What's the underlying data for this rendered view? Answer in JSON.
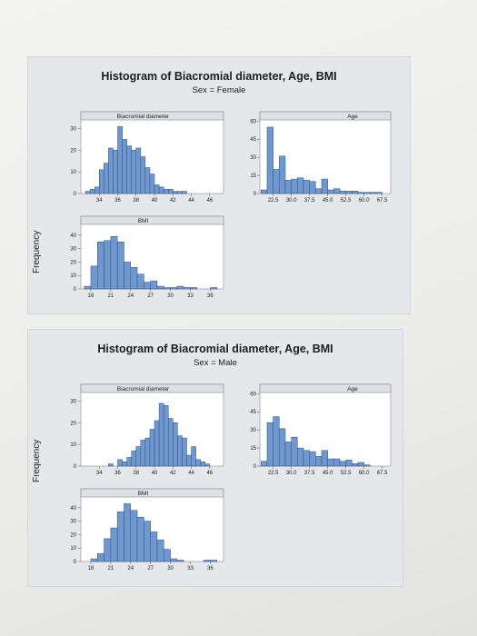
{
  "ylabel": "Frequency",
  "figures": [
    {
      "title": "Histogram of Biacromial diameter, Age, BMI",
      "subtitle": "Sex = Female",
      "ylabel": "Frequency"
    },
    {
      "title": "Histogram of Biacromial diameter, Age, BMI",
      "subtitle": "Sex = Male",
      "ylabel": "Frequency"
    }
  ],
  "colors": {
    "bar": "#6f98cf",
    "bar_edge": "#2f4f86",
    "panel_bg": "#ffffff",
    "figure_bg": "#e6e7ea",
    "strip_bg": "#dde1e6"
  },
  "chart_data": [
    {
      "type": "bar",
      "title": "Histogram of Biacromial diameter, Age, BMI",
      "subtitle": "Sex = Female",
      "ylabel": "Frequency",
      "panels": [
        {
          "name": "Biacromial diameter",
          "xticks": [
            34,
            36,
            38,
            40,
            42,
            44,
            46
          ],
          "yticks": [
            0,
            10,
            20,
            30
          ],
          "ylim": [
            0,
            34
          ],
          "xlim": [
            32,
            47.5
          ],
          "bin_width": 0.5,
          "x": [
            32.75,
            33.25,
            33.75,
            34.25,
            34.75,
            35.25,
            35.75,
            36.25,
            36.75,
            37.25,
            37.75,
            38.25,
            38.75,
            39.25,
            39.75,
            40.25,
            40.75,
            41.25,
            41.75,
            42.25,
            42.75,
            43.25,
            43.75,
            44.25,
            44.75,
            45.25,
            45.75,
            46.25,
            46.75
          ],
          "values": [
            1,
            2,
            3,
            11,
            14,
            21,
            20,
            31,
            25,
            22,
            20,
            21,
            17,
            12,
            9,
            4,
            3,
            2,
            2,
            1,
            1,
            1,
            0,
            0,
            0,
            0,
            0,
            0,
            0
          ]
        },
        {
          "name": "Age",
          "xticks": [
            "22.5",
            "30.0",
            "37.5",
            "45.0",
            "52.5",
            "60.0",
            "67.5"
          ],
          "xtick_values": [
            22.5,
            30.0,
            37.5,
            45.0,
            52.5,
            60.0,
            67.5
          ],
          "yticks": [
            0,
            15,
            30,
            45,
            60
          ],
          "ylim": [
            0,
            61
          ],
          "xlim": [
            17,
            71
          ],
          "bin_width": 2.5,
          "x": [
            18.75,
            21.25,
            23.75,
            26.25,
            28.75,
            31.25,
            33.75,
            36.25,
            38.75,
            41.25,
            43.75,
            46.25,
            48.75,
            51.25,
            53.75,
            56.25,
            58.75,
            61.25,
            63.75,
            66.25
          ],
          "values": [
            3,
            55,
            20,
            31,
            11,
            12,
            13,
            11,
            10,
            4,
            12,
            3,
            4,
            2,
            2,
            2,
            1,
            1,
            1,
            1
          ]
        },
        {
          "name": "BMI",
          "xticks": [
            18,
            21,
            24,
            27,
            30,
            33,
            36
          ],
          "yticks": [
            0,
            10,
            20,
            30,
            40
          ],
          "ylim": [
            0,
            48
          ],
          "xlim": [
            16.5,
            38
          ],
          "bin_width": 1,
          "x": [
            17.5,
            18.5,
            19.5,
            20.5,
            21.5,
            22.5,
            23.5,
            24.5,
            25.5,
            26.5,
            27.5,
            28.5,
            29.5,
            30.5,
            31.5,
            32.5,
            33.5,
            34.5,
            35.5,
            36.5
          ],
          "values": [
            2,
            17,
            35,
            36,
            39,
            35,
            20,
            16,
            11,
            5,
            6,
            2,
            1,
            1,
            2,
            1,
            1,
            0,
            0,
            1
          ]
        }
      ]
    },
    {
      "type": "bar",
      "title": "Histogram of Biacromial diameter, Age, BMI",
      "subtitle": "Sex = Male",
      "ylabel": "Frequency",
      "panels": [
        {
          "name": "Biacromial diameter",
          "xticks": [
            34,
            36,
            38,
            40,
            42,
            44,
            46
          ],
          "yticks": [
            0,
            10,
            20,
            30
          ],
          "ylim": [
            0,
            34
          ],
          "xlim": [
            32,
            47.5
          ],
          "bin_width": 0.5,
          "x": [
            32.75,
            33.25,
            33.75,
            34.25,
            34.75,
            35.25,
            35.75,
            36.25,
            36.75,
            37.25,
            37.75,
            38.25,
            38.75,
            39.25,
            39.75,
            40.25,
            40.75,
            41.25,
            41.75,
            42.25,
            42.75,
            43.25,
            43.75,
            44.25,
            44.75,
            45.25,
            45.75,
            46.25,
            46.75
          ],
          "values": [
            0,
            0,
            0,
            0,
            0,
            1,
            0,
            3,
            2,
            4,
            7,
            9,
            12,
            13,
            17,
            21,
            29,
            28,
            22,
            20,
            14,
            13,
            5,
            9,
            3,
            2,
            1,
            0,
            0
          ]
        },
        {
          "name": "Age",
          "xticks": [
            "22.5",
            "30.0",
            "37.5",
            "45.0",
            "52.5",
            "60.0",
            "67.5"
          ],
          "xtick_values": [
            22.5,
            30.0,
            37.5,
            45.0,
            52.5,
            60.0,
            67.5
          ],
          "yticks": [
            0,
            15,
            30,
            45,
            60
          ],
          "ylim": [
            0,
            61
          ],
          "xlim": [
            17,
            71
          ],
          "bin_width": 2.5,
          "x": [
            18.75,
            21.25,
            23.75,
            26.25,
            28.75,
            31.25,
            33.75,
            36.25,
            38.75,
            41.25,
            43.75,
            46.25,
            48.75,
            51.25,
            53.75,
            56.25,
            58.75,
            61.25,
            63.75,
            66.25
          ],
          "values": [
            4,
            36,
            41,
            31,
            20,
            24,
            15,
            13,
            12,
            8,
            13,
            6,
            6,
            4,
            5,
            2,
            3,
            1,
            0,
            0
          ]
        },
        {
          "name": "BMI",
          "xticks": [
            18,
            21,
            24,
            27,
            30,
            33,
            36
          ],
          "yticks": [
            0,
            10,
            20,
            30,
            40
          ],
          "ylim": [
            0,
            48
          ],
          "xlim": [
            16.5,
            38
          ],
          "bin_width": 1,
          "x": [
            17.5,
            18.5,
            19.5,
            20.5,
            21.5,
            22.5,
            23.5,
            24.5,
            25.5,
            26.5,
            27.5,
            28.5,
            29.5,
            30.5,
            31.5,
            32.5,
            33.5,
            34.5,
            35.5,
            36.5
          ],
          "values": [
            0,
            2,
            6,
            17,
            25,
            37,
            43,
            38,
            33,
            30,
            22,
            16,
            9,
            2,
            1,
            0,
            0,
            0,
            1,
            1
          ]
        }
      ]
    }
  ]
}
